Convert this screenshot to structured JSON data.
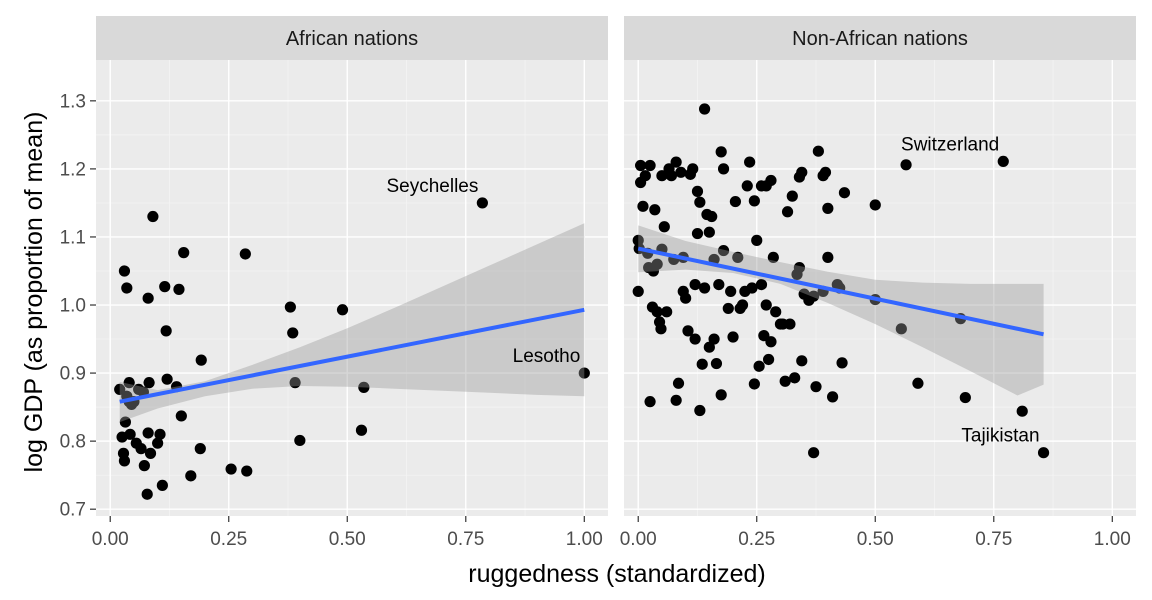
{
  "chart_data": {
    "type": "scatter",
    "xlabel": "ruggedness (standardized)",
    "ylabel": "log GDP (as proportion of mean)",
    "xlim": [
      -0.03,
      1.05
    ],
    "ylim": [
      0.69,
      1.36
    ],
    "x_ticks": [
      0,
      0.25,
      0.5,
      0.75,
      1
    ],
    "x_tick_labels": [
      "0.00",
      "0.25",
      "0.50",
      "0.75",
      "1.00"
    ],
    "y_ticks": [
      0.7,
      0.8,
      0.9,
      1.0,
      1.1,
      1.2,
      1.3
    ],
    "y_tick_labels": [
      "0.7",
      "0.8",
      "0.9",
      "1.0",
      "1.1",
      "1.2",
      "1.3"
    ],
    "grid": true,
    "colors": {
      "points": "#000000",
      "fit_line": "#3366ff",
      "band": "#999999",
      "panel": "#ebebeb",
      "strip": "#d9d9d9"
    },
    "facets": [
      {
        "label": "African nations",
        "fit": {
          "x": [
            0.02,
            1.0
          ],
          "y": [
            0.858,
            0.993
          ]
        },
        "band": {
          "x": [
            0.02,
            0.1,
            0.2,
            0.3,
            0.4,
            0.5,
            0.6,
            0.7,
            0.8,
            0.9,
            1.0
          ],
          "lower": [
            0.828,
            0.848,
            0.866,
            0.877,
            0.881,
            0.88,
            0.877,
            0.874,
            0.871,
            0.868,
            0.866
          ],
          "upper": [
            0.887,
            0.875,
            0.888,
            0.912,
            0.938,
            0.966,
            0.996,
            1.027,
            1.058,
            1.089,
            1.12
          ]
        },
        "points": [
          {
            "x": 0.02,
            "y": 0.876
          },
          {
            "x": 0.03,
            "y": 1.05
          },
          {
            "x": 0.035,
            "y": 1.025
          },
          {
            "x": 0.025,
            "y": 0.806
          },
          {
            "x": 0.028,
            "y": 0.782
          },
          {
            "x": 0.03,
            "y": 0.771
          },
          {
            "x": 0.032,
            "y": 0.828
          },
          {
            "x": 0.035,
            "y": 0.866
          },
          {
            "x": 0.04,
            "y": 0.886
          },
          {
            "x": 0.045,
            "y": 0.854
          },
          {
            "x": 0.04,
            "y": 0.858
          },
          {
            "x": 0.042,
            "y": 0.81
          },
          {
            "x": 0.05,
            "y": 0.858
          },
          {
            "x": 0.055,
            "y": 0.797
          },
          {
            "x": 0.06,
            "y": 0.876
          },
          {
            "x": 0.065,
            "y": 0.789
          },
          {
            "x": 0.07,
            "y": 0.872
          },
          {
            "x": 0.072,
            "y": 0.764
          },
          {
            "x": 0.078,
            "y": 0.722
          },
          {
            "x": 0.08,
            "y": 1.01
          },
          {
            "x": 0.082,
            "y": 0.886
          },
          {
            "x": 0.08,
            "y": 0.812
          },
          {
            "x": 0.085,
            "y": 0.782
          },
          {
            "x": 0.09,
            "y": 1.13
          },
          {
            "x": 0.1,
            "y": 0.797
          },
          {
            "x": 0.105,
            "y": 0.81
          },
          {
            "x": 0.11,
            "y": 0.735
          },
          {
            "x": 0.115,
            "y": 1.027
          },
          {
            "x": 0.118,
            "y": 0.962
          },
          {
            "x": 0.12,
            "y": 0.891
          },
          {
            "x": 0.14,
            "y": 0.88
          },
          {
            "x": 0.145,
            "y": 1.023
          },
          {
            "x": 0.15,
            "y": 0.837
          },
          {
            "x": 0.155,
            "y": 1.077
          },
          {
            "x": 0.17,
            "y": 0.749
          },
          {
            "x": 0.19,
            "y": 0.789
          },
          {
            "x": 0.192,
            "y": 0.919
          },
          {
            "x": 0.255,
            "y": 0.759
          },
          {
            "x": 0.285,
            "y": 1.075
          },
          {
            "x": 0.288,
            "y": 0.756
          },
          {
            "x": 0.38,
            "y": 0.997
          },
          {
            "x": 0.385,
            "y": 0.959
          },
          {
            "x": 0.39,
            "y": 0.886
          },
          {
            "x": 0.4,
            "y": 0.801
          },
          {
            "x": 0.49,
            "y": 0.993
          },
          {
            "x": 0.53,
            "y": 0.816
          },
          {
            "x": 0.535,
            "y": 0.879
          },
          {
            "x": 0.785,
            "y": 1.15
          },
          {
            "x": 1.0,
            "y": 0.9
          }
        ],
        "annotations": [
          {
            "label": "Seychelles",
            "x": 0.785,
            "y": 1.15
          },
          {
            "label": "Lesotho",
            "x": 1.0,
            "y": 0.9
          }
        ]
      },
      {
        "label": "Non-African nations",
        "fit": {
          "x": [
            0.0,
            0.855
          ],
          "y": [
            1.083,
            0.957
          ]
        },
        "band": {
          "x": [
            0.0,
            0.1,
            0.2,
            0.3,
            0.4,
            0.5,
            0.6,
            0.7,
            0.8,
            0.855
          ],
          "lower": [
            1.048,
            1.052,
            1.047,
            1.031,
            1.003,
            0.972,
            0.938,
            0.903,
            0.867,
            0.883
          ],
          "upper": [
            1.117,
            1.094,
            1.078,
            1.063,
            1.049,
            1.037,
            1.033,
            1.031,
            1.031,
            1.031
          ]
        },
        "points": [
          {
            "x": 0.0,
            "y": 1.02
          },
          {
            "x": 0.0,
            "y": 1.095
          },
          {
            "x": 0.002,
            "y": 1.083
          },
          {
            "x": 0.005,
            "y": 1.18
          },
          {
            "x": 0.005,
            "y": 1.205
          },
          {
            "x": 0.01,
            "y": 1.145
          },
          {
            "x": 0.015,
            "y": 1.19
          },
          {
            "x": 0.02,
            "y": 1.076
          },
          {
            "x": 0.022,
            "y": 1.055
          },
          {
            "x": 0.025,
            "y": 1.205
          },
          {
            "x": 0.025,
            "y": 0.858
          },
          {
            "x": 0.03,
            "y": 0.997
          },
          {
            "x": 0.032,
            "y": 1.05
          },
          {
            "x": 0.035,
            "y": 1.14
          },
          {
            "x": 0.04,
            "y": 1.06
          },
          {
            "x": 0.04,
            "y": 0.99
          },
          {
            "x": 0.045,
            "y": 0.975
          },
          {
            "x": 0.048,
            "y": 0.965
          },
          {
            "x": 0.05,
            "y": 1.082
          },
          {
            "x": 0.05,
            "y": 1.19
          },
          {
            "x": 0.055,
            "y": 1.115
          },
          {
            "x": 0.06,
            "y": 0.99
          },
          {
            "x": 0.065,
            "y": 1.2
          },
          {
            "x": 0.07,
            "y": 1.19
          },
          {
            "x": 0.075,
            "y": 1.067
          },
          {
            "x": 0.08,
            "y": 0.86
          },
          {
            "x": 0.08,
            "y": 1.21
          },
          {
            "x": 0.085,
            "y": 0.885
          },
          {
            "x": 0.09,
            "y": 1.195
          },
          {
            "x": 0.095,
            "y": 1.07
          },
          {
            "x": 0.095,
            "y": 1.02
          },
          {
            "x": 0.1,
            "y": 1.01
          },
          {
            "x": 0.105,
            "y": 0.962
          },
          {
            "x": 0.11,
            "y": 1.192
          },
          {
            "x": 0.115,
            "y": 1.2
          },
          {
            "x": 0.12,
            "y": 0.95
          },
          {
            "x": 0.12,
            "y": 1.03
          },
          {
            "x": 0.125,
            "y": 1.167
          },
          {
            "x": 0.125,
            "y": 1.105
          },
          {
            "x": 0.13,
            "y": 1.151
          },
          {
            "x": 0.13,
            "y": 0.845
          },
          {
            "x": 0.135,
            "y": 0.913
          },
          {
            "x": 0.14,
            "y": 1.288
          },
          {
            "x": 0.14,
            "y": 1.025
          },
          {
            "x": 0.145,
            "y": 1.133
          },
          {
            "x": 0.15,
            "y": 0.938
          },
          {
            "x": 0.15,
            "y": 1.107
          },
          {
            "x": 0.155,
            "y": 1.13
          },
          {
            "x": 0.16,
            "y": 0.95
          },
          {
            "x": 0.16,
            "y": 1.067
          },
          {
            "x": 0.165,
            "y": 0.914
          },
          {
            "x": 0.17,
            "y": 1.03
          },
          {
            "x": 0.175,
            "y": 0.868
          },
          {
            "x": 0.175,
            "y": 1.225
          },
          {
            "x": 0.18,
            "y": 1.08
          },
          {
            "x": 0.18,
            "y": 1.2
          },
          {
            "x": 0.19,
            "y": 0.995
          },
          {
            "x": 0.195,
            "y": 1.02
          },
          {
            "x": 0.2,
            "y": 0.953
          },
          {
            "x": 0.205,
            "y": 1.152
          },
          {
            "x": 0.21,
            "y": 1.07
          },
          {
            "x": 0.215,
            "y": 0.995
          },
          {
            "x": 0.22,
            "y": 1.0
          },
          {
            "x": 0.225,
            "y": 1.02
          },
          {
            "x": 0.23,
            "y": 1.175
          },
          {
            "x": 0.235,
            "y": 1.21
          },
          {
            "x": 0.24,
            "y": 1.025
          },
          {
            "x": 0.245,
            "y": 0.884
          },
          {
            "x": 0.245,
            "y": 1.153
          },
          {
            "x": 0.25,
            "y": 1.095
          },
          {
            "x": 0.255,
            "y": 0.91
          },
          {
            "x": 0.26,
            "y": 1.175
          },
          {
            "x": 0.26,
            "y": 1.03
          },
          {
            "x": 0.265,
            "y": 0.955
          },
          {
            "x": 0.27,
            "y": 1.0
          },
          {
            "x": 0.27,
            "y": 1.175
          },
          {
            "x": 0.275,
            "y": 0.92
          },
          {
            "x": 0.28,
            "y": 1.183
          },
          {
            "x": 0.28,
            "y": 0.946
          },
          {
            "x": 0.285,
            "y": 1.07
          },
          {
            "x": 0.29,
            "y": 0.99
          },
          {
            "x": 0.3,
            "y": 0.972
          },
          {
            "x": 0.305,
            "y": 0.972
          },
          {
            "x": 0.31,
            "y": 0.888
          },
          {
            "x": 0.315,
            "y": 1.137
          },
          {
            "x": 0.32,
            "y": 0.972
          },
          {
            "x": 0.325,
            "y": 1.16
          },
          {
            "x": 0.33,
            "y": 0.893
          },
          {
            "x": 0.335,
            "y": 1.045
          },
          {
            "x": 0.34,
            "y": 1.188
          },
          {
            "x": 0.34,
            "y": 1.055
          },
          {
            "x": 0.345,
            "y": 1.195
          },
          {
            "x": 0.345,
            "y": 0.918
          },
          {
            "x": 0.35,
            "y": 1.016
          },
          {
            "x": 0.36,
            "y": 1.007
          },
          {
            "x": 0.37,
            "y": 1.013
          },
          {
            "x": 0.37,
            "y": 0.783
          },
          {
            "x": 0.375,
            "y": 0.88
          },
          {
            "x": 0.38,
            "y": 1.226
          },
          {
            "x": 0.39,
            "y": 1.19
          },
          {
            "x": 0.39,
            "y": 1.02
          },
          {
            "x": 0.395,
            "y": 1.195
          },
          {
            "x": 0.4,
            "y": 1.142
          },
          {
            "x": 0.4,
            "y": 1.07
          },
          {
            "x": 0.41,
            "y": 0.865
          },
          {
            "x": 0.42,
            "y": 1.03
          },
          {
            "x": 0.425,
            "y": 1.025
          },
          {
            "x": 0.43,
            "y": 0.915
          },
          {
            "x": 0.435,
            "y": 1.165
          },
          {
            "x": 0.5,
            "y": 1.147
          },
          {
            "x": 0.5,
            "y": 1.008
          },
          {
            "x": 0.555,
            "y": 0.965
          },
          {
            "x": 0.565,
            "y": 1.206
          },
          {
            "x": 0.59,
            "y": 0.885
          },
          {
            "x": 0.68,
            "y": 0.98
          },
          {
            "x": 0.69,
            "y": 0.864
          },
          {
            "x": 0.77,
            "y": 1.211
          },
          {
            "x": 0.81,
            "y": 0.844
          },
          {
            "x": 0.855,
            "y": 0.783
          }
        ],
        "annotations": [
          {
            "label": "Switzerland",
            "x": 0.77,
            "y": 1.211
          },
          {
            "label": "Tajikistan",
            "x": 0.855,
            "y": 0.783
          }
        ]
      }
    ]
  }
}
